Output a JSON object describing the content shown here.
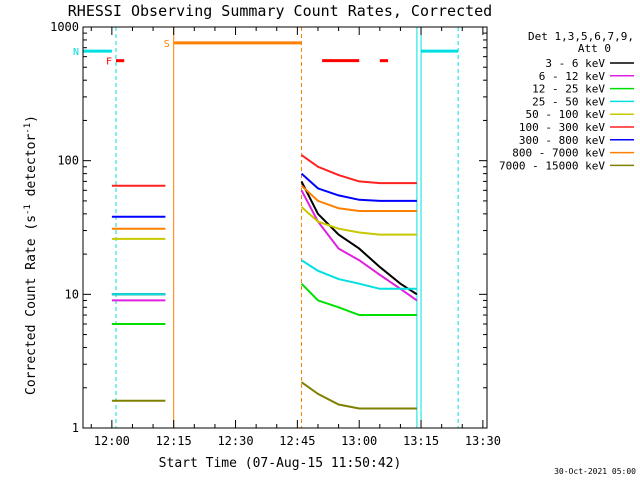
{
  "chart_data": {
    "type": "line",
    "title": "RHESSI Observing Summary Count Rates, Corrected",
    "xlabel": "Start Time (07-Aug-15 11:50:42)",
    "ylabel_main": "Corrected Count Rate (s",
    "ylabel_sup1": "-1",
    "ylabel_mid": " detector",
    "ylabel_sup2": "-1",
    "ylabel_end": ")",
    "yscale": "log",
    "ylim": [
      1,
      1000
    ],
    "xlim": [
      "11:53",
      "13:31"
    ],
    "x_ticks": [
      "12:00",
      "12:15",
      "12:30",
      "12:45",
      "13:00",
      "13:15",
      "13:30"
    ],
    "y_ticks": [
      "1",
      "10",
      "100",
      "1000"
    ],
    "legend_header": [
      "Det 1,3,5,6,7,9,",
      "Att 0"
    ],
    "series": [
      {
        "name": "3 - 6 keV",
        "color": "#000000",
        "segments": [
          {
            "x": [
              "12:00",
              "12:04",
              "12:08",
              "12:13"
            ],
            "y": [
              10,
              10,
              10,
              10
            ]
          },
          {
            "x": [
              "12:46",
              "12:50",
              "12:55",
              "13:00",
              "13:05",
              "13:10",
              "13:14"
            ],
            "y": [
              70,
              40,
              28,
              22,
              16,
              12,
              10
            ]
          }
        ]
      },
      {
        "name": "6 - 12 keV",
        "color": "#e020e0",
        "segments": [
          {
            "x": [
              "12:00",
              "12:04",
              "12:08",
              "12:13"
            ],
            "y": [
              9,
              9,
              9,
              9
            ]
          },
          {
            "x": [
              "12:46",
              "12:50",
              "12:55",
              "13:00",
              "13:05",
              "13:10",
              "13:14"
            ],
            "y": [
              60,
              35,
              22,
              18,
              14,
              11,
              9
            ]
          }
        ]
      },
      {
        "name": "12 - 25 keV",
        "color": "#00e000",
        "segments": [
          {
            "x": [
              "12:00",
              "12:04",
              "12:08",
              "12:13"
            ],
            "y": [
              6,
              6,
              6,
              6
            ]
          },
          {
            "x": [
              "12:46",
              "12:50",
              "12:55",
              "13:00",
              "13:05",
              "13:10",
              "13:14"
            ],
            "y": [
              12,
              9,
              8,
              7,
              7,
              7,
              7
            ]
          }
        ]
      },
      {
        "name": "25 - 50 keV",
        "color": "#00e0e0",
        "segments": [
          {
            "x": [
              "12:00",
              "12:04",
              "12:08",
              "12:13"
            ],
            "y": [
              10,
              10,
              10,
              10
            ]
          },
          {
            "x": [
              "12:46",
              "12:50",
              "12:55",
              "13:00",
              "13:05",
              "13:10",
              "13:14"
            ],
            "y": [
              18,
              15,
              13,
              12,
              11,
              11,
              11
            ]
          }
        ]
      },
      {
        "name": "50 - 100 keV",
        "color": "#c8c800",
        "segments": [
          {
            "x": [
              "12:00",
              "12:04",
              "12:08",
              "12:13"
            ],
            "y": [
              26,
              26,
              26,
              26
            ]
          },
          {
            "x": [
              "12:46",
              "12:50",
              "12:55",
              "13:00",
              "13:05",
              "13:10",
              "13:14"
            ],
            "y": [
              45,
              35,
              31,
              29,
              28,
              28,
              28
            ]
          }
        ]
      },
      {
        "name": "100 - 300 keV",
        "color": "#ff2020",
        "segments": [
          {
            "x": [
              "12:00",
              "12:04",
              "12:08",
              "12:13"
            ],
            "y": [
              65,
              65,
              65,
              65
            ]
          },
          {
            "x": [
              "12:46",
              "12:50",
              "12:55",
              "13:00",
              "13:05",
              "13:10",
              "13:14"
            ],
            "y": [
              110,
              90,
              78,
              70,
              68,
              68,
              68
            ]
          }
        ]
      },
      {
        "name": "300 - 800 keV",
        "color": "#0000ff",
        "segments": [
          {
            "x": [
              "12:00",
              "12:04",
              "12:08",
              "12:13"
            ],
            "y": [
              38,
              38,
              38,
              38
            ]
          },
          {
            "x": [
              "12:46",
              "12:50",
              "12:55",
              "13:00",
              "13:05",
              "13:10",
              "13:14"
            ],
            "y": [
              80,
              62,
              55,
              51,
              50,
              50,
              50
            ]
          }
        ]
      },
      {
        "name": "800 - 7000 keV",
        "color": "#ff8000",
        "segments": [
          {
            "x": [
              "12:00",
              "12:04",
              "12:08",
              "12:13"
            ],
            "y": [
              31,
              31,
              31,
              31
            ]
          },
          {
            "x": [
              "12:46",
              "12:50",
              "12:55",
              "13:00",
              "13:05",
              "13:10",
              "13:14"
            ],
            "y": [
              65,
              50,
              44,
              42,
              42,
              42,
              42
            ]
          }
        ]
      },
      {
        "name": "7000 - 15000 keV",
        "color": "#808000",
        "segments": [
          {
            "x": [
              "12:00",
              "12:04",
              "12:08",
              "12:13"
            ],
            "y": [
              1.6,
              1.6,
              1.6,
              1.6
            ]
          },
          {
            "x": [
              "12:46",
              "12:50",
              "12:55",
              "13:00",
              "13:05",
              "13:10",
              "13:14"
            ],
            "y": [
              2.2,
              1.8,
              1.5,
              1.4,
              1.4,
              1.4,
              1.4
            ]
          }
        ]
      }
    ],
    "flags": [
      {
        "label": "F",
        "color": "#ff0000",
        "level": 560,
        "intervals": [
          [
            "12:01",
            "12:03"
          ]
        ]
      },
      {
        "label": "N",
        "color": "#00e0e0",
        "level": 660,
        "intervals": [
          [
            "11:53",
            "12:00"
          ],
          [
            "13:15",
            "13:24"
          ]
        ]
      },
      {
        "label": "S",
        "color": "#ff8000",
        "level": 760,
        "intervals": [
          [
            "12:15",
            "12:46"
          ]
        ]
      },
      {
        "label": "",
        "color": "#ff0000",
        "level": 560,
        "intervals": [
          [
            "12:51",
            "13:00"
          ],
          [
            "13:05",
            "13:07"
          ]
        ]
      }
    ],
    "vlines": [
      {
        "x": "12:01",
        "color": "#00e0e0",
        "dashed": true
      },
      {
        "x": "12:15",
        "color": "#ff8000",
        "dashed": false
      },
      {
        "x": "12:46",
        "color": "#ff8000",
        "dashed": true
      },
      {
        "x": "13:14",
        "color": "#00e0e0",
        "dashed": false
      },
      {
        "x": "13:15",
        "color": "#00e0e0",
        "dashed": false
      },
      {
        "x": "13:24",
        "color": "#00e0e0",
        "dashed": true
      }
    ],
    "date_stamp": "30-Oct-2021 05:00"
  }
}
